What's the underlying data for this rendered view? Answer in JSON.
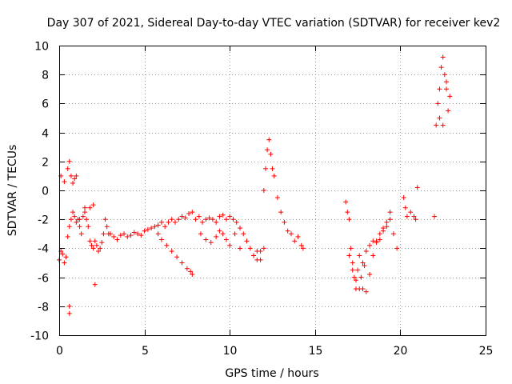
{
  "chart_data": {
    "type": "scatter",
    "title": "Day 307 of 2021, Sidereal Day-to-day VTEC variation (SDTVAR) for receiver kev2",
    "xlabel": "GPS time / hours",
    "ylabel": "SDTVAR / TECUs",
    "xlim": [
      0,
      25
    ],
    "ylim": [
      -10,
      10
    ],
    "xticks": [
      "0",
      "5",
      "10",
      "15",
      "20",
      "25"
    ],
    "yticks": [
      "10",
      "8",
      "6",
      "4",
      "2",
      "0",
      "-2",
      "-4",
      "-6",
      "-8",
      "-10"
    ],
    "grid": true,
    "marker": "+",
    "series_color": "#ff0000",
    "series": [
      {
        "name": "kev2",
        "x": [
          0.0,
          0.1,
          0.2,
          0.3,
          0.4,
          0.5,
          0.6,
          0.7,
          0.8,
          0.9,
          1.0,
          1.1,
          1.2,
          1.3,
          1.4,
          1.5,
          1.6,
          1.7,
          1.8,
          1.9,
          2.0,
          2.1,
          2.2,
          2.3,
          2.4,
          2.5,
          2.6,
          2.7,
          2.8,
          2.9,
          3.0,
          3.2,
          3.4,
          3.6,
          3.8,
          4.0,
          4.2,
          4.4,
          4.6,
          4.8,
          5.0,
          5.2,
          5.4,
          5.6,
          5.8,
          6.0,
          6.2,
          6.4,
          6.6,
          6.8,
          7.0,
          7.2,
          7.4,
          7.6,
          7.8,
          8.0,
          8.2,
          8.4,
          8.6,
          8.8,
          9.0,
          9.2,
          9.4,
          9.6,
          9.8,
          10.0,
          10.2,
          10.4,
          10.6,
          10.8,
          11.0,
          11.2,
          11.4,
          11.6,
          11.8,
          12.0,
          12.1,
          12.2,
          12.3,
          12.4,
          12.5,
          12.6,
          12.8,
          13.0,
          13.2,
          13.4,
          13.6,
          13.8,
          14.0,
          14.2,
          14.3,
          0.1,
          0.3,
          0.5,
          0.6,
          0.7,
          0.8,
          0.9,
          1.0,
          1.2,
          1.5,
          1.8,
          2.0,
          5.8,
          6.0,
          6.3,
          6.6,
          6.9,
          7.2,
          7.5,
          7.7,
          7.8,
          8.3,
          8.6,
          8.9,
          9.2,
          9.4,
          9.6,
          9.8,
          10.0,
          10.3,
          10.6,
          11.4,
          11.6,
          11.8,
          12.0,
          16.8,
          16.9,
          17.0,
          17.1,
          17.2,
          17.3,
          17.4,
          17.5,
          17.6,
          17.7,
          17.8,
          17.9,
          18.0,
          18.2,
          18.4,
          18.6,
          18.8,
          19.0,
          19.2,
          19.4,
          19.6,
          19.8,
          17.0,
          17.2,
          17.4,
          17.6,
          17.8,
          18.0,
          18.2,
          18.4,
          18.6,
          18.8,
          19.0,
          19.2,
          19.4,
          0.6,
          0.6,
          2.1,
          20.2,
          20.3,
          20.4,
          20.6,
          20.8,
          20.9,
          21.0,
          22.0,
          22.1,
          22.2,
          22.3,
          22.4,
          22.5,
          22.6,
          22.7,
          22.8,
          22.9,
          22.3,
          22.5,
          22.7
        ],
        "y": [
          -4.8,
          -4.2,
          -4.4,
          -5.0,
          -4.6,
          -3.2,
          -2.5,
          -2.0,
          -1.5,
          -1.8,
          -2.2,
          -2.0,
          -2.5,
          -3.0,
          -1.8,
          -1.2,
          -2.0,
          -2.5,
          -3.5,
          -3.8,
          -4.0,
          -3.5,
          -3.8,
          -4.2,
          -4.0,
          -3.6,
          -3.0,
          -2.0,
          -2.5,
          -3.0,
          -3.0,
          -3.2,
          -3.4,
          -3.1,
          -3.0,
          -3.2,
          -3.1,
          -2.9,
          -3.0,
          -3.1,
          -2.8,
          -2.7,
          -2.6,
          -2.5,
          -2.4,
          -2.2,
          -2.5,
          -2.2,
          -2.0,
          -2.2,
          -2.0,
          -1.8,
          -1.9,
          -1.6,
          -1.5,
          -2.0,
          -1.8,
          -2.2,
          -2.0,
          -1.9,
          -2.0,
          -2.2,
          -1.8,
          -1.7,
          -2.0,
          -1.8,
          -2.0,
          -2.2,
          -2.6,
          -3.0,
          -3.5,
          -4.0,
          -4.5,
          -4.8,
          -4.2,
          0.0,
          1.5,
          2.8,
          3.5,
          2.5,
          1.5,
          1.0,
          -0.5,
          -1.5,
          -2.2,
          -2.8,
          -3.0,
          -3.5,
          -3.2,
          -3.8,
          -4.0,
          1.0,
          0.6,
          1.5,
          2.0,
          1.0,
          0.5,
          0.8,
          1.0,
          -2.0,
          -1.5,
          -1.2,
          -1.0,
          -3.0,
          -3.4,
          -3.8,
          -4.2,
          -4.6,
          -5.0,
          -5.4,
          -5.6,
          -5.8,
          -3.0,
          -3.4,
          -3.6,
          -3.2,
          -2.8,
          -3.0,
          -3.4,
          -3.8,
          -3.0,
          -4.0,
          -4.5,
          -4.2,
          -4.8,
          -4.0,
          -0.8,
          -1.5,
          -2.0,
          -4.0,
          -5.0,
          -6.0,
          -6.8,
          -5.5,
          -4.5,
          -6.0,
          -6.8,
          -5.2,
          -4.2,
          -3.8,
          -3.5,
          -3.6,
          -3.4,
          -2.8,
          -2.5,
          -2.0,
          -3.0,
          -4.0,
          -4.5,
          -5.5,
          -6.2,
          -6.8,
          -5.0,
          -7.0,
          -5.8,
          -4.5,
          -3.5,
          -3.0,
          -2.6,
          -2.2,
          -1.5,
          -8.0,
          -8.5,
          -6.5,
          -0.5,
          -1.2,
          -1.8,
          -1.5,
          -1.8,
          -2.0,
          0.2,
          -1.8,
          4.5,
          6.0,
          7.0,
          8.5,
          9.2,
          8.0,
          7.0,
          5.5,
          6.5,
          5.0,
          4.5,
          7.5
        ]
      }
    ]
  }
}
